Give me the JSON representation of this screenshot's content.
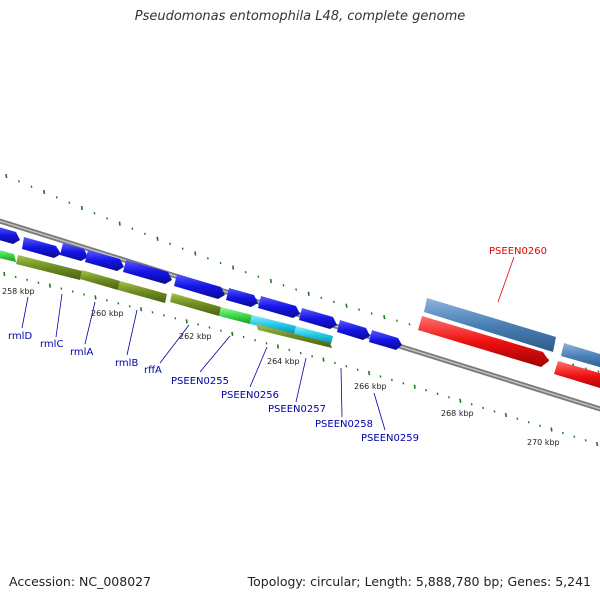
{
  "header": {
    "title": "Pseudomonas entomophila L48, complete genome"
  },
  "footer": {
    "accession": "Accession: NC_008027",
    "topology": "Topology: circular; Length: 5,888,780 bp; Genes: 5,241"
  },
  "scale_labels": [
    "258 kbp",
    "260 kbp",
    "262 kbp",
    "264 kbp",
    "266 kbp",
    "268 kbp",
    "270 kbp"
  ],
  "gene_labels": [
    "rmlD",
    "rmlC",
    "rmlA",
    "rmlB",
    "rffA",
    "PSEEN0255",
    "PSEEN0256",
    "PSEEN0257",
    "PSEEN0258",
    "PSEEN0259",
    "PSEEN0260"
  ],
  "colors": {
    "backbone": "#8a8a8a",
    "forward_gene": "#1414e6",
    "reverse_operon": "#6e8c22",
    "highlight_green": "#3fd84a",
    "highlight_cyan": "#22c8e8",
    "steel_blue": "#4a7fb5",
    "red_gene": "#ee1111",
    "tick_green": "#1c7a1c",
    "label_blue": "#0000aa",
    "label_red": "#ee0000"
  }
}
